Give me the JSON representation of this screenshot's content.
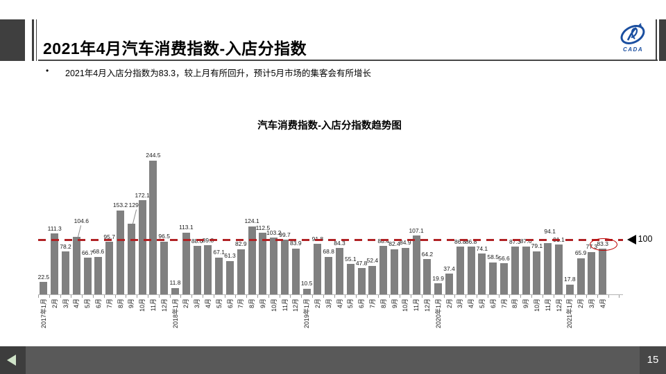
{
  "header": {
    "title": "2021年4月汽车消费指数-入店分指数",
    "logo_text": "CADA"
  },
  "bullet": {
    "marker": "•",
    "text": "2021年4月入店分指数为83.3，较上月有所回升，预计5月市场的集客会有所增长"
  },
  "chart_data": {
    "type": "bar",
    "title": "汽车消费指数-入店分指数趋势图",
    "categories": [
      "2017年1月",
      "2月",
      "3月",
      "4月",
      "5月",
      "6月",
      "7月",
      "8月",
      "9月",
      "10月",
      "11月",
      "12月",
      "2018年1月",
      "2月",
      "3月",
      "4月",
      "5月",
      "6月",
      "7月",
      "8月",
      "9月",
      "10月",
      "11月",
      "12月",
      "2019年1月",
      "2月",
      "3月",
      "4月",
      "5月",
      "6月",
      "7月",
      "8月",
      "9月",
      "10月",
      "11月",
      "12月",
      "2020年1月",
      "2月",
      "3月",
      "4月",
      "5月",
      "6月",
      "7月",
      "8月",
      "9月",
      "10月",
      "11月",
      "12月",
      "2021年1月",
      "2月",
      "3月",
      "4月"
    ],
    "values": [
      22.5,
      111.3,
      78.2,
      104.6,
      66.7,
      68.6,
      95.7,
      153.2,
      129.1,
      172.1,
      244.5,
      96.5,
      11.8,
      113.1,
      88.6,
      89.8,
      67.1,
      61.3,
      82.9,
      124.1,
      112.5,
      103.2,
      99.7,
      83.9,
      10.5,
      91.8,
      68.8,
      84.3,
      55.1,
      47.8,
      52.4,
      88.4,
      82.4,
      84.9,
      107.1,
      64.2,
      19.9,
      37.4,
      86.8,
      86.8,
      74.1,
      58.5,
      56.6,
      87.3,
      87.6,
      79.1,
      94.1,
      91.1,
      17.8,
      65.9,
      77.3,
      83.3
    ],
    "bar_color": "#808080",
    "value_labels": true,
    "grid": false,
    "legend": "none",
    "ylim": [
      0,
      250
    ],
    "reference_line": {
      "value": 100,
      "color": "#b02124",
      "style": "dashed",
      "label": "100"
    },
    "label_adjust": {
      "3": [
        16,
        7
      ],
      "8": [
        20,
        7
      ],
      "46": [
        9,
        3
      ]
    },
    "callout_indices": [
      3,
      8
    ],
    "circled_index": 51,
    "circle_color": "#c00000"
  },
  "footer": {
    "page_number": "15",
    "back_icon": "◀"
  }
}
